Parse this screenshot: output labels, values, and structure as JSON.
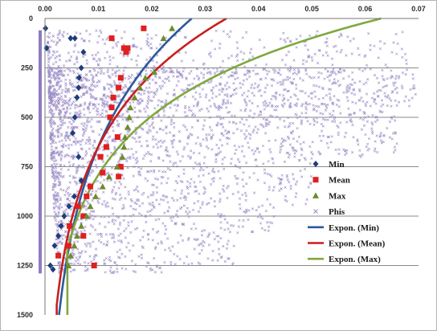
{
  "chart_data": {
    "type": "scatter",
    "title": "",
    "xlabel": "",
    "ylabel": "",
    "xlim": [
      0,
      0.07
    ],
    "ylim": [
      0,
      1500
    ],
    "y_inverted": true,
    "x_axis_position": "top",
    "grid": {
      "horizontal": true,
      "vertical": false
    },
    "x_ticks": [
      "0.00",
      "0.01",
      "0.02",
      "0.03",
      "0.04",
      "0.05",
      "0.06",
      "0.07"
    ],
    "x_tick_values": [
      0,
      0.01,
      0.02,
      0.03,
      0.04,
      0.05,
      0.06,
      0.07
    ],
    "y_ticks": [
      "0",
      "250",
      "500",
      "750",
      "1000",
      "1250",
      "1500"
    ],
    "y_tick_values": [
      0,
      250,
      500,
      750,
      1000,
      1250,
      1500
    ],
    "legend_position": "right",
    "series": [
      {
        "name": "Min",
        "kind": "points",
        "marker": "diamond",
        "color": "#1f3d7a",
        "points": [
          [
            0.0001,
            50
          ],
          [
            0.0003,
            150
          ],
          [
            0.0048,
            100
          ],
          [
            0.0056,
            100
          ],
          [
            0.0072,
            170
          ],
          [
            0.0068,
            250
          ],
          [
            0.0064,
            300
          ],
          [
            0.0063,
            350
          ],
          [
            0.006,
            400
          ],
          [
            0.0056,
            500
          ],
          [
            0.0052,
            580
          ],
          [
            0.0063,
            700
          ],
          [
            0.0068,
            820
          ],
          [
            0.0055,
            900
          ],
          [
            0.0045,
            950
          ],
          [
            0.0036,
            1000
          ],
          [
            0.003,
            1050
          ],
          [
            0.0025,
            1100
          ],
          [
            0.0018,
            1150
          ],
          [
            0.001,
            1250
          ],
          [
            0.0015,
            1270
          ]
        ]
      },
      {
        "name": "Mean",
        "kind": "points",
        "marker": "square",
        "color": "#e01f1f",
        "points": [
          [
            0.0185,
            50
          ],
          [
            0.0125,
            100
          ],
          [
            0.0148,
            150
          ],
          [
            0.0155,
            150
          ],
          [
            0.0152,
            170
          ],
          [
            0.0142,
            300
          ],
          [
            0.0138,
            350
          ],
          [
            0.0128,
            400
          ],
          [
            0.0125,
            450
          ],
          [
            0.0122,
            500
          ],
          [
            0.0136,
            600
          ],
          [
            0.0115,
            650
          ],
          [
            0.0104,
            700
          ],
          [
            0.0142,
            750
          ],
          [
            0.0108,
            780
          ],
          [
            0.0138,
            800
          ],
          [
            0.0085,
            850
          ],
          [
            0.0078,
            900
          ],
          [
            0.0062,
            950
          ],
          [
            0.0072,
            1000
          ],
          [
            0.0046,
            1050
          ],
          [
            0.0072,
            1100
          ],
          [
            0.0044,
            1150
          ],
          [
            0.0025,
            1200
          ],
          [
            0.0092,
            1250
          ]
        ]
      },
      {
        "name": "Max",
        "kind": "points",
        "marker": "triangle",
        "color": "#6e8b2e",
        "points": [
          [
            0.0238,
            50
          ],
          [
            0.0222,
            100
          ],
          [
            0.0205,
            270
          ],
          [
            0.0188,
            300
          ],
          [
            0.0178,
            350
          ],
          [
            0.0168,
            400
          ],
          [
            0.016,
            450
          ],
          [
            0.0158,
            500
          ],
          [
            0.0155,
            550
          ],
          [
            0.015,
            600
          ],
          [
            0.0148,
            650
          ],
          [
            0.0145,
            700
          ],
          [
            0.0135,
            750
          ],
          [
            0.012,
            800
          ],
          [
            0.0108,
            850
          ],
          [
            0.0095,
            900
          ],
          [
            0.0085,
            950
          ],
          [
            0.0078,
            1000
          ],
          [
            0.0068,
            1050
          ],
          [
            0.006,
            1100
          ],
          [
            0.0055,
            1150
          ],
          [
            0.0048,
            1200
          ],
          [
            0.0044,
            1250
          ]
        ]
      },
      {
        "name": "Phis",
        "kind": "points",
        "marker": "x",
        "color": "#9b8cc6"
      },
      {
        "name": "Expon. (Min)",
        "kind": "trendline",
        "color": "#2a5a9a",
        "a": 0.0001,
        "b": 640,
        "x_range": [
          0.0001,
          0.0275
        ]
      },
      {
        "name": "Expon. (Mean)",
        "kind": "trendline",
        "color": "#c81e1e",
        "a": 0.0022,
        "b": 530,
        "x_range": [
          0.0022,
          0.034
        ]
      },
      {
        "name": "Expon. (Max)",
        "kind": "trendline",
        "color": "#7fa83d",
        "a": 0.0042,
        "b": 430,
        "x_range": [
          0.0042,
          0.063
        ]
      }
    ]
  }
}
